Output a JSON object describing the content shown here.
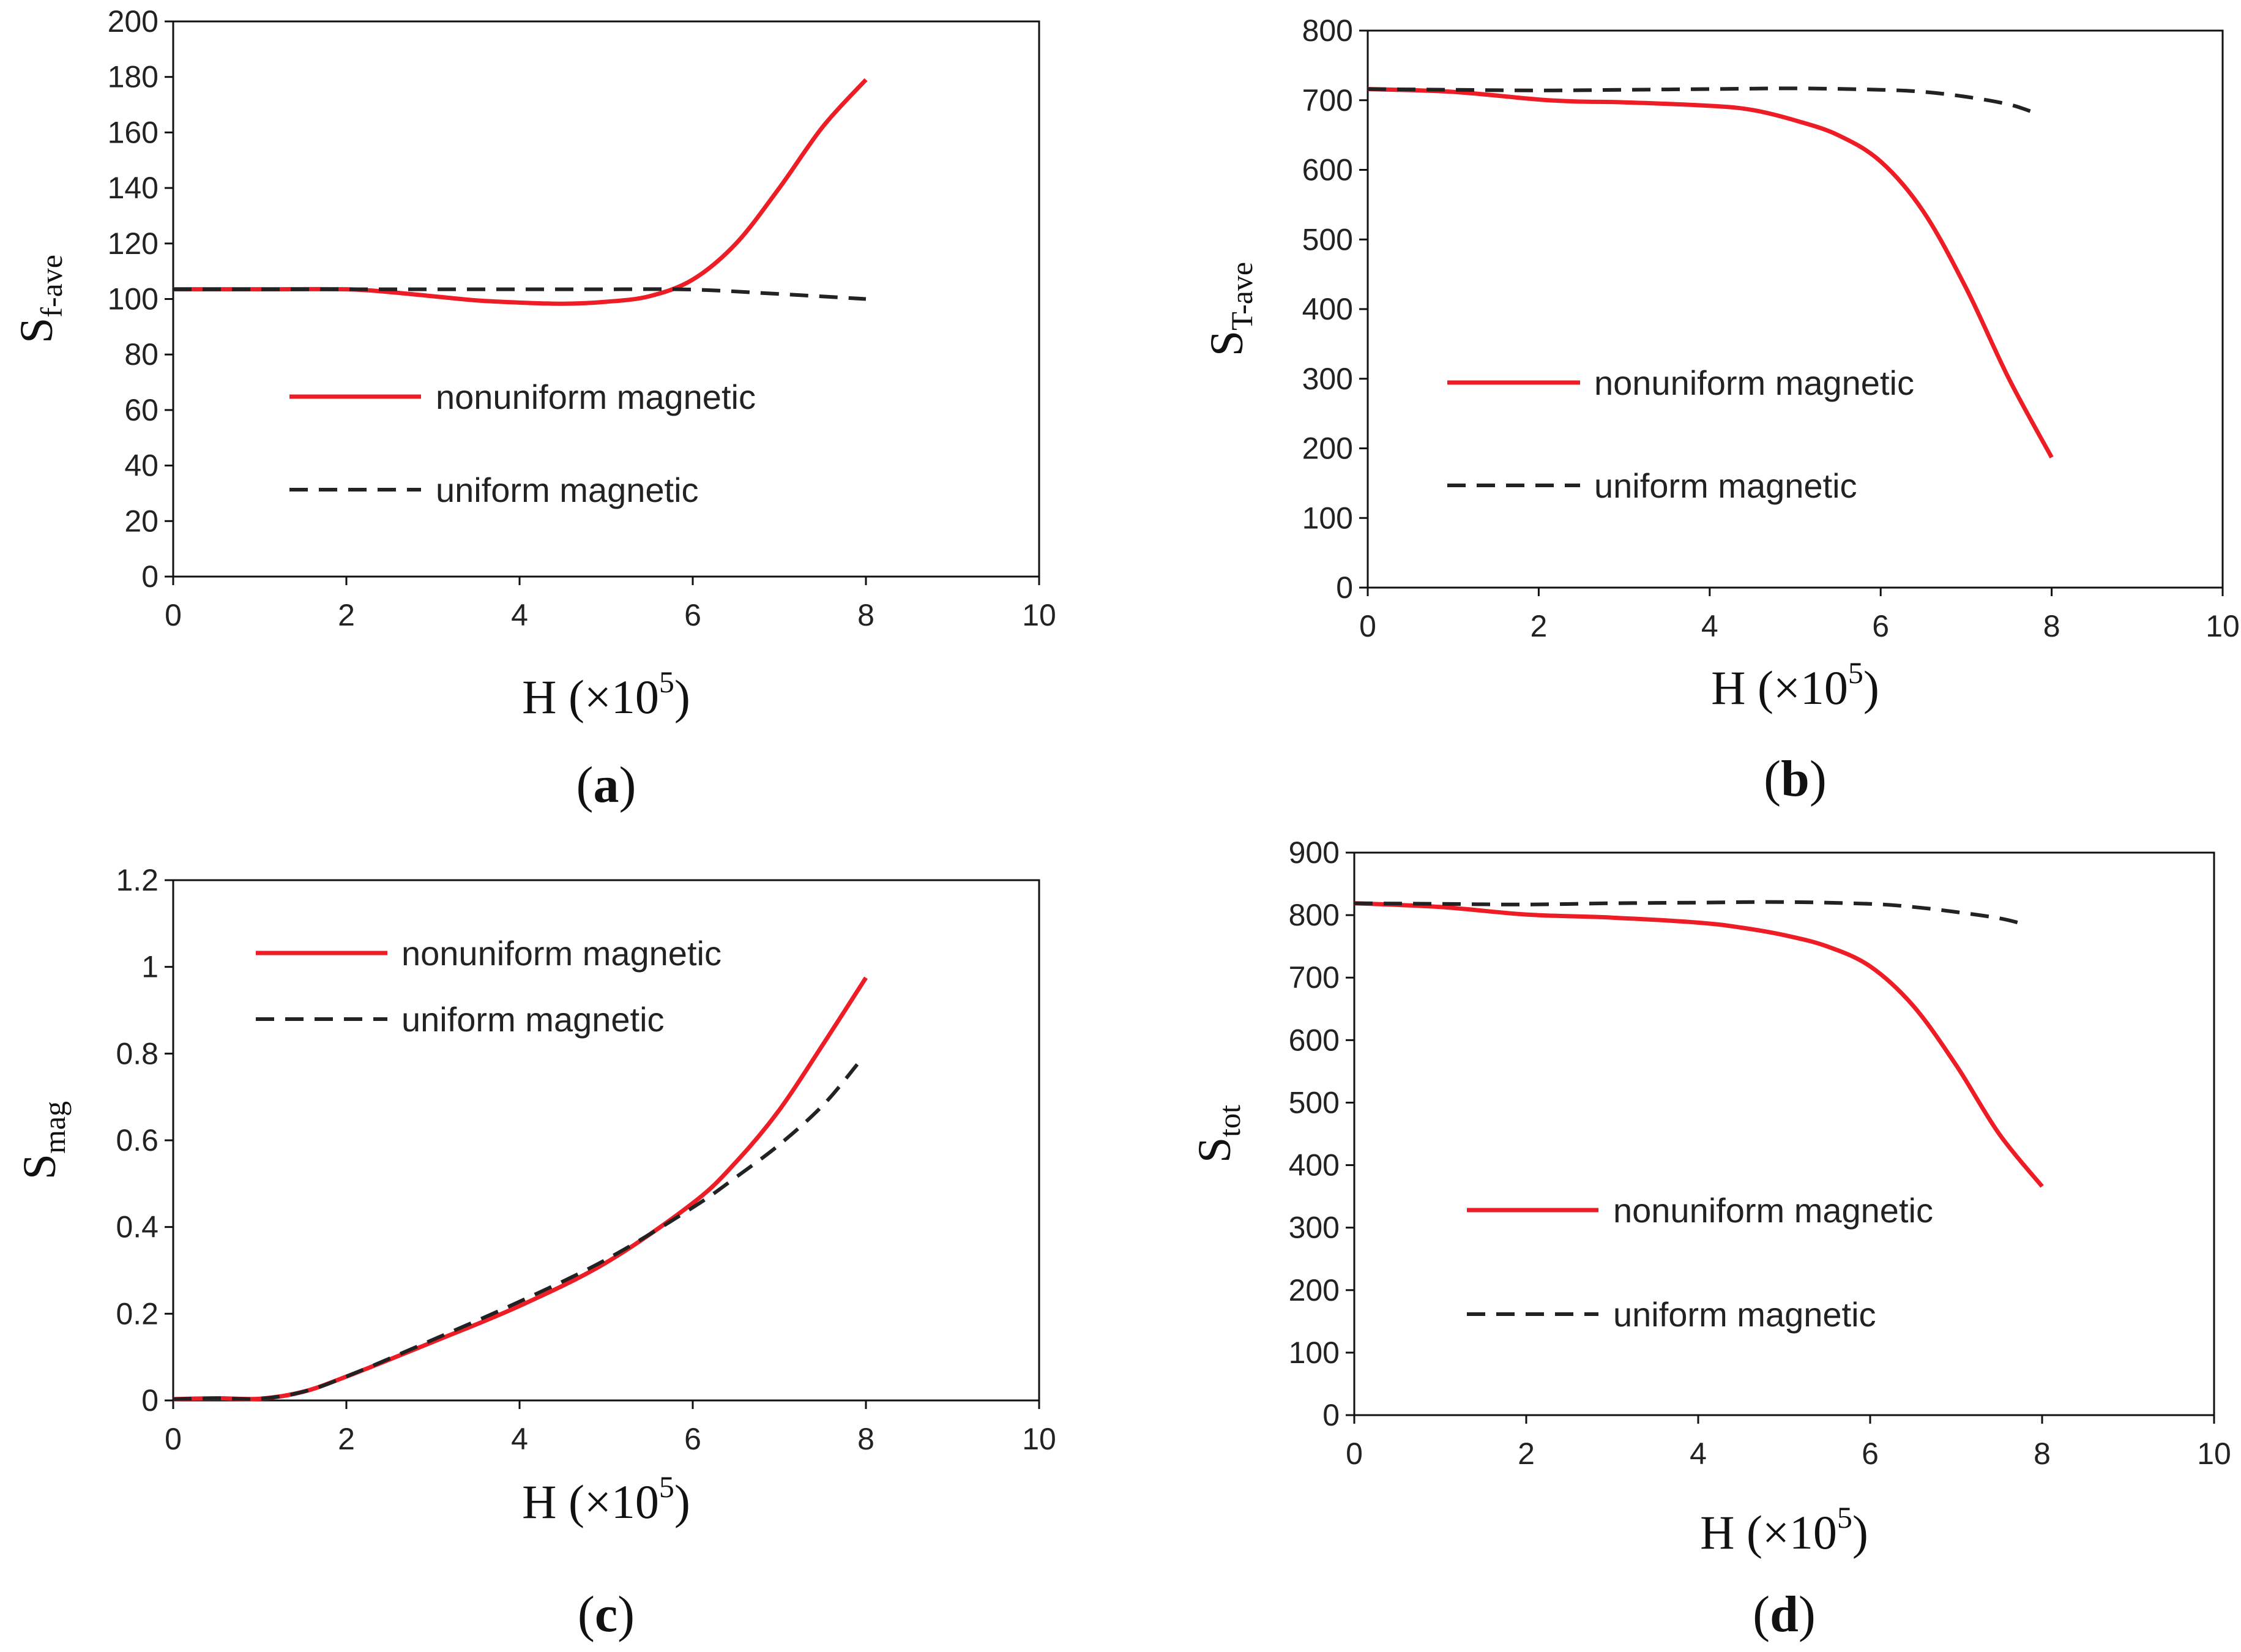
{
  "styles": {
    "nonuniform_color": "#ee1c25",
    "uniform_color": "#222222",
    "axis_color": "#111111"
  },
  "chart_data": [
    {
      "id": "a",
      "panel_label": "a",
      "type": "line",
      "ylabel_main": "S",
      "ylabel_sub": "f-ave",
      "xlabel": "H (×10",
      "xlabel_exp": "5",
      "xlabel_close": ")",
      "xlim": [
        0,
        10
      ],
      "ylim": [
        0,
        200
      ],
      "xticks": [
        0,
        2,
        4,
        6,
        8,
        10
      ],
      "xtick_labels": [
        "0",
        "2",
        "4",
        "6",
        "8",
        "10"
      ],
      "yticks": [
        0,
        20,
        40,
        60,
        80,
        100,
        120,
        140,
        160,
        180,
        200
      ],
      "ytick_labels": [
        "0",
        "20",
        "40",
        "60",
        "80",
        "100",
        "120",
        "140",
        "160",
        "180",
        "200"
      ],
      "legend_position": "middle-left",
      "series": [
        {
          "name": "nonuniform magnetic",
          "style": "solid",
          "x": [
            0,
            1,
            2,
            2.5,
            3,
            3.5,
            4,
            4.5,
            5,
            5.5,
            6,
            6.5,
            7,
            7.5,
            8
          ],
          "y": [
            103.5,
            103.5,
            103.5,
            102.5,
            101,
            99.5,
            98.7,
            98.3,
            99,
            101,
            107,
            120,
            140,
            162,
            179
          ]
        },
        {
          "name": "uniform magnetic",
          "style": "dashed",
          "x": [
            0,
            1,
            2,
            3,
            4,
            5,
            6,
            7,
            8
          ],
          "y": [
            103.5,
            103.5,
            103.5,
            103.5,
            103.5,
            103.5,
            103.4,
            101.8,
            100
          ]
        }
      ]
    },
    {
      "id": "b",
      "panel_label": "b",
      "type": "line",
      "ylabel_main": "S",
      "ylabel_sub": "T-ave",
      "xlabel": "H (×10",
      "xlabel_exp": "5",
      "xlabel_close": ")",
      "xlim": [
        0,
        10
      ],
      "ylim": [
        0,
        800
      ],
      "xticks": [
        0,
        2,
        4,
        6,
        8,
        10
      ],
      "xtick_labels": [
        "0",
        "2",
        "4",
        "6",
        "8",
        "10"
      ],
      "yticks": [
        0,
        100,
        200,
        300,
        400,
        500,
        600,
        700,
        800
      ],
      "ytick_labels": [
        "0",
        "100",
        "200",
        "300",
        "400",
        "500",
        "600",
        "700",
        "800"
      ],
      "legend_position": "middle-left",
      "series": [
        {
          "name": "nonuniform magnetic",
          "style": "solid",
          "x": [
            0,
            1,
            2,
            2.5,
            3,
            4,
            4.5,
            5,
            5.5,
            6,
            6.5,
            7,
            7.5,
            8
          ],
          "y": [
            716,
            712,
            701,
            698,
            697,
            692,
            686,
            671,
            650,
            612,
            540,
            430,
            300,
            187
          ]
        },
        {
          "name": "uniform magnetic",
          "style": "dashed",
          "x": [
            0,
            1,
            2,
            3,
            4,
            5,
            6,
            6.5,
            7,
            7.5,
            7.8
          ],
          "y": [
            716,
            715,
            714,
            715,
            716,
            717,
            715,
            712,
            705,
            694,
            682
          ]
        }
      ]
    },
    {
      "id": "c",
      "panel_label": "c",
      "type": "line",
      "ylabel_main": "S",
      "ylabel_sub": "mag",
      "xlabel": "H (×10",
      "xlabel_exp": "5",
      "xlabel_close": ")",
      "xlim": [
        0,
        10
      ],
      "ylim": [
        0,
        1.2
      ],
      "xticks": [
        0,
        2,
        4,
        6,
        8,
        10
      ],
      "xtick_labels": [
        "0",
        "2",
        "4",
        "6",
        "8",
        "10"
      ],
      "yticks": [
        0,
        0.2,
        0.4,
        0.6,
        0.8,
        1,
        1.2
      ],
      "ytick_labels": [
        "0",
        "0.2",
        "0.4",
        "0.6",
        "0.8",
        "1",
        "1.2"
      ],
      "legend_position": "top-left",
      "series": [
        {
          "name": "nonuniform magnetic",
          "style": "solid",
          "x": [
            0,
            0.5,
            1,
            1.5,
            2,
            3,
            4,
            5,
            6,
            6.5,
            7,
            7.5,
            8
          ],
          "y": [
            0.003,
            0.005,
            0.004,
            0.02,
            0.055,
            0.135,
            0.218,
            0.318,
            0.455,
            0.55,
            0.67,
            0.82,
            0.975
          ]
        },
        {
          "name": "uniform magnetic",
          "style": "dashed",
          "x": [
            0,
            0.5,
            1,
            1.5,
            2,
            3,
            4,
            5,
            6,
            6.5,
            7,
            7.5,
            7.9
          ],
          "y": [
            0.003,
            0.005,
            0.004,
            0.02,
            0.055,
            0.14,
            0.228,
            0.325,
            0.445,
            0.515,
            0.59,
            0.68,
            0.775
          ]
        }
      ]
    },
    {
      "id": "d",
      "panel_label": "d",
      "type": "line",
      "ylabel_main": "S",
      "ylabel_sub": "tot",
      "xlabel": "H (×10",
      "xlabel_exp": "5",
      "xlabel_close": ")",
      "xlim": [
        0,
        10
      ],
      "ylim": [
        0,
        900
      ],
      "xticks": [
        0,
        2,
        4,
        6,
        8,
        10
      ],
      "xtick_labels": [
        "0",
        "2",
        "4",
        "6",
        "8",
        "10"
      ],
      "yticks": [
        0,
        100,
        200,
        300,
        400,
        500,
        600,
        700,
        800,
        900
      ],
      "ytick_labels": [
        "0",
        "100",
        "200",
        "300",
        "400",
        "500",
        "600",
        "700",
        "800",
        "900"
      ],
      "legend_position": "lower-left",
      "series": [
        {
          "name": "nonuniform magnetic",
          "style": "solid",
          "x": [
            0,
            1,
            2,
            3,
            4,
            4.5,
            5,
            5.5,
            6,
            6.5,
            7,
            7.5,
            8
          ],
          "y": [
            819,
            813,
            801,
            796,
            788,
            780,
            768,
            750,
            718,
            655,
            560,
            450,
            366
          ]
        },
        {
          "name": "uniform magnetic",
          "style": "dashed",
          "x": [
            0,
            1,
            2,
            3,
            4,
            5,
            6,
            6.5,
            7,
            7.5,
            7.8
          ],
          "y": [
            819,
            818,
            817,
            819,
            820,
            821,
            818,
            813,
            805,
            795,
            785
          ]
        }
      ]
    }
  ]
}
